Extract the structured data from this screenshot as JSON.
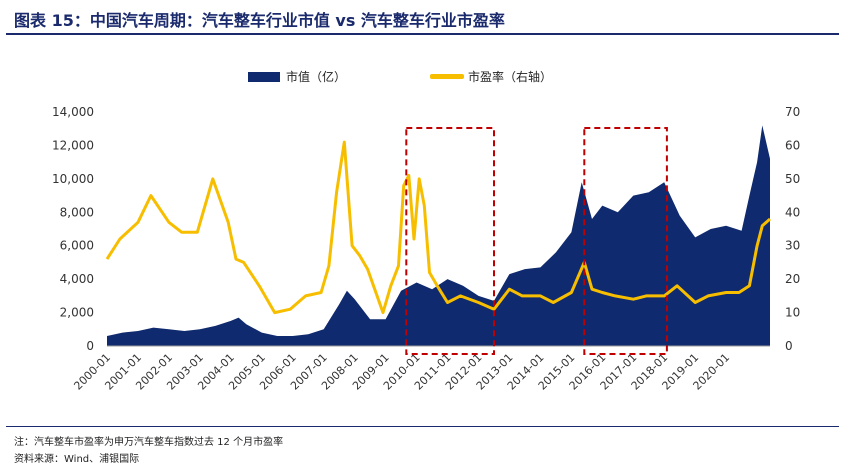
{
  "figure": {
    "title": "图表 15：中国汽车周期：汽车整车行业市值 vs 汽车整车行业市盈率",
    "note": "注：汽车整车市盈率为申万汽车整车指数过去 12 个月市盈率",
    "source": "资料来源：Wind、浦银国际"
  },
  "chart_data": {
    "type": "area+line",
    "legend_position": "top-center",
    "grid": false,
    "colors": {
      "market_cap": "#0f2a6e",
      "pe": "#f7be00",
      "highlight_box": "#c00000"
    },
    "x_tick_labels": [
      "2000-01",
      "2001-01",
      "2002-01",
      "2003-01",
      "2004-01",
      "2005-01",
      "2006-01",
      "2007-01",
      "2008-01",
      "2009-01",
      "2010-01",
      "2011-01",
      "2012-01",
      "2013-01",
      "2014-01",
      "2015-01",
      "2016-01",
      "2017-01",
      "2018-01",
      "2019-01",
      "2020-01"
    ],
    "x_range": [
      "2000-01",
      "2021-06"
    ],
    "y_left": {
      "ylim": [
        0,
        14000
      ],
      "ticks": [
        "0",
        "2,000",
        "4,000",
        "6,000",
        "8,000",
        "10,000",
        "12,000",
        "14,000"
      ]
    },
    "y_right": {
      "ylim": [
        0,
        70
      ],
      "ticks": [
        "0",
        "10",
        "20",
        "30",
        "40",
        "50",
        "60",
        "70"
      ]
    },
    "highlight_periods": [
      [
        "2009-09",
        "2012-07"
      ],
      [
        "2015-06",
        "2018-02"
      ]
    ],
    "series": [
      {
        "name": "市值（亿）",
        "type": "area",
        "axis": "left",
        "x": [
          "2000-01",
          "2000-07",
          "2001-01",
          "2001-07",
          "2002-01",
          "2002-07",
          "2003-01",
          "2003-07",
          "2004-01",
          "2004-04",
          "2004-07",
          "2005-01",
          "2005-07",
          "2006-01",
          "2006-07",
          "2007-01",
          "2007-07",
          "2007-10",
          "2008-01",
          "2008-07",
          "2009-01",
          "2009-07",
          "2010-01",
          "2010-07",
          "2011-01",
          "2011-07",
          "2012-01",
          "2012-07",
          "2013-01",
          "2013-07",
          "2014-01",
          "2014-07",
          "2015-01",
          "2015-05",
          "2015-09",
          "2016-01",
          "2016-07",
          "2017-01",
          "2017-07",
          "2018-01",
          "2018-07",
          "2019-01",
          "2019-07",
          "2020-01",
          "2020-07",
          "2020-10",
          "2021-01",
          "2021-03",
          "2021-06"
        ],
        "values": [
          600,
          800,
          900,
          1100,
          1000,
          900,
          1000,
          1200,
          1500,
          1700,
          1300,
          800,
          600,
          600,
          700,
          1000,
          2500,
          3300,
          2800,
          1600,
          1600,
          3300,
          3800,
          3400,
          4000,
          3600,
          3000,
          2700,
          4300,
          4600,
          4700,
          5600,
          6800,
          9800,
          7600,
          8400,
          8000,
          9000,
          9200,
          9800,
          7800,
          6500,
          7000,
          7200,
          6900,
          9000,
          11000,
          13200,
          11200
        ]
      },
      {
        "name": "市盈率（右轴）",
        "type": "line",
        "axis": "right",
        "x": [
          "2000-01",
          "2000-06",
          "2001-01",
          "2001-06",
          "2002-01",
          "2002-06",
          "2002-12",
          "2003-06",
          "2003-12",
          "2004-03",
          "2004-06",
          "2004-12",
          "2005-06",
          "2005-12",
          "2006-06",
          "2006-12",
          "2007-03",
          "2007-06",
          "2007-09",
          "2007-12",
          "2008-03",
          "2008-06",
          "2008-12",
          "2009-03",
          "2009-06",
          "2009-08",
          "2009-10",
          "2009-12",
          "2010-02",
          "2010-04",
          "2010-06",
          "2010-09",
          "2011-01",
          "2011-06",
          "2012-01",
          "2012-07",
          "2013-01",
          "2013-06",
          "2014-01",
          "2014-06",
          "2015-01",
          "2015-06",
          "2015-09",
          "2016-01",
          "2016-06",
          "2017-01",
          "2017-06",
          "2018-01",
          "2018-06",
          "2019-01",
          "2019-06",
          "2020-01",
          "2020-06",
          "2020-10",
          "2021-01",
          "2021-03",
          "2021-06"
        ],
        "values": [
          26,
          32,
          37,
          45,
          37,
          34,
          34,
          50,
          37,
          26,
          25,
          18,
          10,
          11,
          15,
          16,
          24,
          46,
          61,
          30,
          27,
          23,
          10,
          18,
          24,
          48,
          51,
          32,
          50,
          42,
          22,
          18,
          13,
          15,
          13,
          11,
          17,
          15,
          15,
          13,
          16,
          25,
          17,
          16,
          15,
          14,
          15,
          15,
          18,
          13,
          15,
          16,
          16,
          18,
          30,
          36,
          38
        ]
      }
    ]
  }
}
